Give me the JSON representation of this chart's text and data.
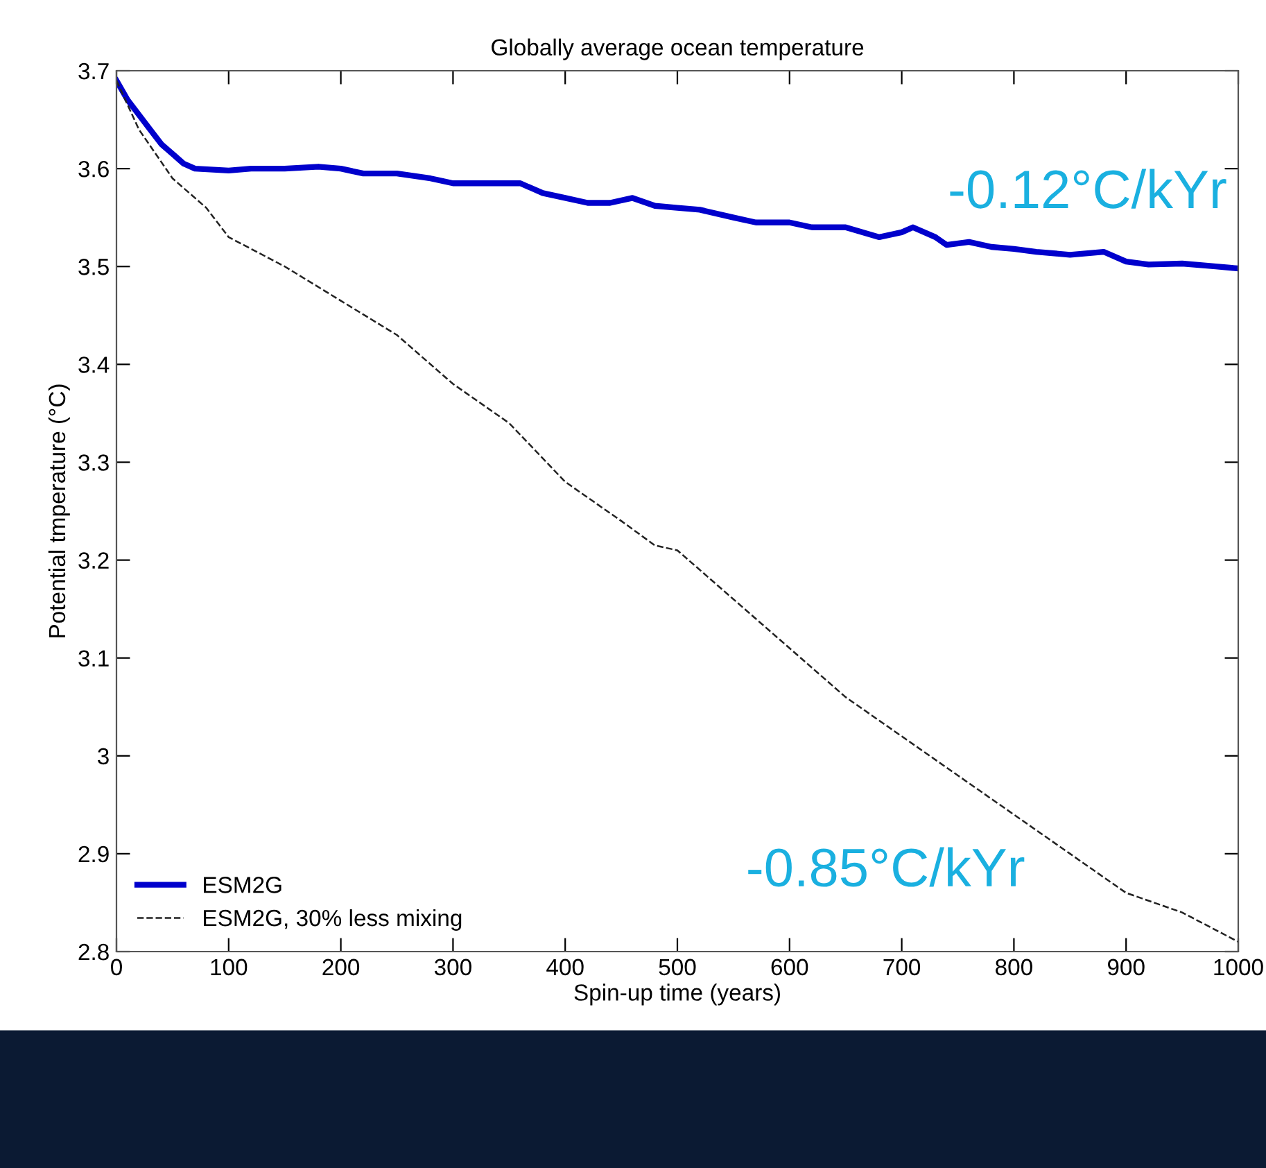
{
  "chart_data": {
    "type": "line",
    "title": "Globally average ocean temperature",
    "xlabel": "Spin-up time (years)",
    "ylabel": "Potential tmperature (°C)",
    "xlim": [
      0,
      1000
    ],
    "xticks": [
      0,
      100,
      200,
      300,
      400,
      500,
      600,
      700,
      800,
      900,
      1000
    ],
    "ylim": [
      2.8,
      3.7
    ],
    "yticks": [
      {
        "value": 2.8,
        "label": "2.8"
      },
      {
        "value": 2.9,
        "label": "2.9"
      },
      {
        "value": 3.0,
        "label": "3"
      },
      {
        "value": 3.1,
        "label": "3.1"
      },
      {
        "value": 3.2,
        "label": "3.2"
      },
      {
        "value": 3.3,
        "label": "3.3"
      },
      {
        "value": 3.4,
        "label": "3.4"
      },
      {
        "value": 3.5,
        "label": "3.5"
      },
      {
        "value": 3.6,
        "label": "3.6"
      },
      {
        "value": 3.7,
        "label": "3.7"
      }
    ],
    "grid": false,
    "legend": "bottom left",
    "marker": "none",
    "series": [
      {
        "name": "ESM2G",
        "color": "#0000cc",
        "line_style": "solid",
        "x": [
          0,
          10,
          20,
          30,
          40,
          50,
          60,
          70,
          100,
          120,
          150,
          180,
          200,
          220,
          250,
          280,
          300,
          330,
          360,
          380,
          400,
          420,
          440,
          460,
          480,
          500,
          520,
          550,
          570,
          600,
          620,
          650,
          680,
          700,
          710,
          730,
          740,
          760,
          780,
          800,
          820,
          850,
          880,
          900,
          920,
          950,
          980,
          1000
        ],
        "values": [
          3.69,
          3.67,
          3.655,
          3.64,
          3.625,
          3.615,
          3.605,
          3.6,
          3.598,
          3.6,
          3.6,
          3.602,
          3.6,
          3.595,
          3.595,
          3.59,
          3.585,
          3.585,
          3.585,
          3.575,
          3.57,
          3.565,
          3.565,
          3.57,
          3.562,
          3.56,
          3.558,
          3.55,
          3.545,
          3.545,
          3.54,
          3.54,
          3.53,
          3.535,
          3.54,
          3.53,
          3.522,
          3.525,
          3.52,
          3.518,
          3.515,
          3.512,
          3.515,
          3.505,
          3.502,
          3.503,
          3.5,
          3.498
        ]
      },
      {
        "name": "ESM2G, 30% less mixing",
        "color": "#222222",
        "line_style": "dashed",
        "x": [
          0,
          20,
          50,
          80,
          100,
          150,
          200,
          250,
          300,
          350,
          400,
          450,
          480,
          500,
          550,
          600,
          650,
          700,
          750,
          800,
          850,
          900,
          950,
          1000
        ],
        "values": [
          3.69,
          3.64,
          3.59,
          3.56,
          3.53,
          3.5,
          3.465,
          3.43,
          3.38,
          3.34,
          3.28,
          3.24,
          3.215,
          3.21,
          3.16,
          3.11,
          3.06,
          3.02,
          2.98,
          2.94,
          2.9,
          2.86,
          2.84,
          2.81
        ]
      }
    ],
    "annotations": [
      "-0.12°C/kYr",
      "-0.85°C/kYr"
    ]
  }
}
